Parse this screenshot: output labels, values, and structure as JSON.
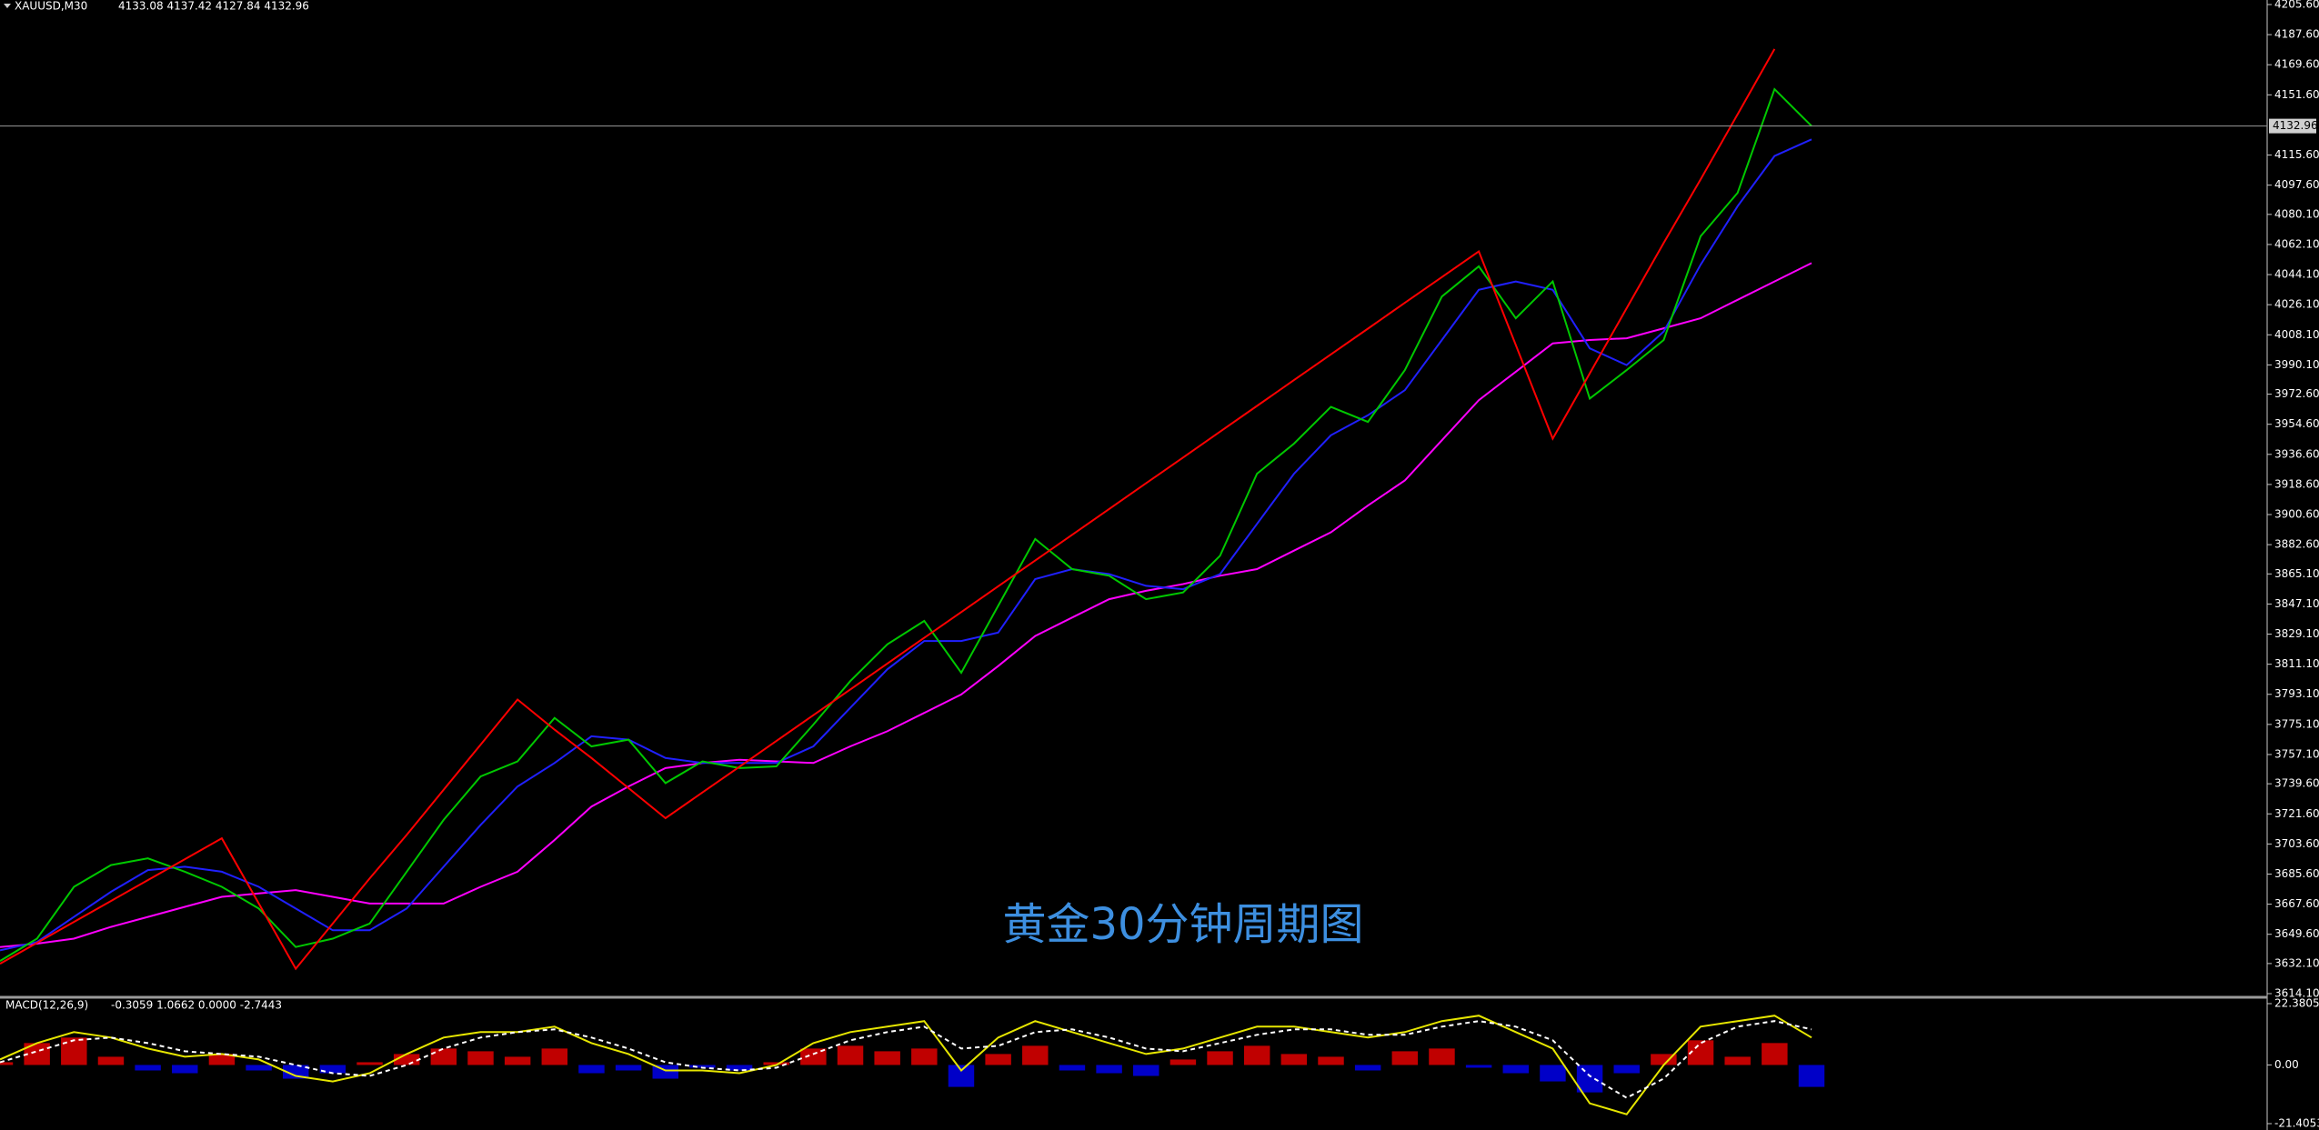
{
  "chart_data": [
    {
      "type": "line",
      "title": "XAUUSD,M30",
      "subtitle": "4133.08 4137.42 4127.84 4132.96",
      "annotation": "黄金30分钟周期图",
      "ylim": [
        3614.1,
        4205.6
      ],
      "yticks": [
        {
          "value": 4205.6,
          "label": "4205.60"
        },
        {
          "value": 4187.6,
          "label": "4187.60"
        },
        {
          "value": 4169.6,
          "label": "4169.60"
        },
        {
          "value": 4151.6,
          "label": "4151.60"
        },
        {
          "value": 4115.6,
          "label": "4115.60"
        },
        {
          "value": 4097.6,
          "label": "4097.60"
        },
        {
          "value": 4080.1,
          "label": "4080.10"
        },
        {
          "value": 4062.1,
          "label": "4062.10"
        },
        {
          "value": 4044.1,
          "label": "4044.10"
        },
        {
          "value": 4026.1,
          "label": "4026.10"
        },
        {
          "value": 4008.1,
          "label": "4008.10"
        },
        {
          "value": 3990.1,
          "label": "3990.10"
        },
        {
          "value": 3972.6,
          "label": "3972.60"
        },
        {
          "value": 3954.6,
          "label": "3954.60"
        },
        {
          "value": 3936.6,
          "label": "3936.60"
        },
        {
          "value": 3918.6,
          "label": "3918.60"
        },
        {
          "value": 3900.6,
          "label": "3900.60"
        },
        {
          "value": 3882.6,
          "label": "3882.60"
        },
        {
          "value": 3865.1,
          "label": "3865.10"
        },
        {
          "value": 3847.1,
          "label": "3847.10"
        },
        {
          "value": 3829.1,
          "label": "3829.10"
        },
        {
          "value": 3811.1,
          "label": "3811.10"
        },
        {
          "value": 3793.1,
          "label": "3793.10"
        },
        {
          "value": 3775.1,
          "label": "3775.10"
        },
        {
          "value": 3757.1,
          "label": "3757.10"
        },
        {
          "value": 3739.6,
          "label": "3739.60"
        },
        {
          "value": 3721.6,
          "label": "3721.60"
        },
        {
          "value": 3703.6,
          "label": "3703.60"
        },
        {
          "value": 3685.6,
          "label": "3685.60"
        },
        {
          "value": 3667.6,
          "label": "3667.60"
        },
        {
          "value": 3649.6,
          "label": "3649.60"
        },
        {
          "value": 3632.1,
          "label": "3632.10"
        },
        {
          "value": 3614.1,
          "label": "3614.10"
        }
      ],
      "current_price": 4132.96,
      "series": [
        {
          "color": "#ff00ff",
          "values": [
            3642,
            3644,
            3647,
            3654,
            3660,
            3666,
            3672,
            3674,
            3676,
            3672,
            3668,
            3668,
            3668,
            3678,
            3687,
            3706,
            3726,
            3738,
            3749,
            3752,
            3754,
            3753,
            3752,
            3762,
            3771,
            3782,
            3793,
            3810,
            3828,
            3839,
            3850,
            3855,
            3859,
            3864,
            3868,
            3879,
            3890,
            3906,
            3921,
            3945,
            3969,
            3986,
            4003,
            4005,
            4006,
            4012,
            4018,
            4029,
            4040,
            4051
          ]
        },
        {
          "color": "#2020ff",
          "values": [
            3640,
            3645,
            3660,
            3675,
            3688,
            3690,
            3687,
            3678,
            3665,
            3652,
            3652,
            3665,
            3690,
            3715,
            3738,
            3752,
            3768,
            3766,
            3755,
            3752,
            3752,
            3752,
            3762,
            3785,
            3808,
            3825,
            3825,
            3830,
            3862,
            3868,
            3865,
            3858,
            3856,
            3865,
            3895,
            3925,
            3948,
            3960,
            3975,
            4005,
            4035,
            4040,
            4035,
            4000,
            3990,
            4010,
            4050,
            4085,
            4115,
            4125
          ]
        },
        {
          "color": "#00c800",
          "values": [
            3633.6,
            3647,
            3678,
            3691,
            3695,
            3687,
            3678,
            3665,
            3642,
            3647,
            3656,
            3687,
            3718,
            3744,
            3753,
            3779,
            3762,
            3766,
            3740,
            3753,
            3749,
            3750,
            3775,
            3801,
            3823,
            3837,
            3806,
            3846,
            3886,
            3868,
            3864,
            3850,
            3854,
            3876,
            3925,
            3943,
            3965,
            3956,
            3987,
            4031,
            4049,
            4018,
            4040,
            3970,
            3987,
            4005,
            4067,
            4093,
            4155,
            4132.96
          ]
        },
        {
          "color": "#ff0000",
          "values": [
            3632,
            3644.5,
            3657,
            3669.5,
            3682,
            3694.5,
            3707,
            3668,
            3629,
            3656,
            3683,
            3709,
            3736,
            3763,
            3790,
            3772,
            3755,
            3737,
            3719,
            3734.4,
            3749.8,
            3765.2,
            3780.6,
            3796.0,
            3811.5,
            3826.9,
            3842.3,
            3857.7,
            3873.1,
            3888.5,
            3903.9,
            3919.3,
            3934.7,
            3950.2,
            3965.6,
            3981.0,
            3996.4,
            4011.8,
            4027.2,
            4042.6,
            4058,
            4002,
            3946,
            3985,
            4024,
            4063,
            4101,
            4140,
            4179,
            null
          ]
        }
      ]
    },
    {
      "type": "macd",
      "title": "MACD(12,26,9)",
      "subtitle": "-0.3059 1.0662 0.0000 -2.7443",
      "ylim": [
        -21.4053,
        22.3805
      ],
      "yticks": [
        22.3805,
        {
          "value": 0,
          "label": "0.00"
        },
        -21.4053
      ],
      "up_color": "#c00000",
      "down_color": "#0000c8",
      "values": [
        1,
        8,
        10,
        3,
        -2,
        -3,
        4,
        -2,
        -5,
        -3,
        1,
        4,
        6,
        5,
        3,
        6,
        -3,
        -2,
        -5,
        -1,
        -2,
        1,
        6,
        7,
        5,
        6,
        -8,
        4,
        7,
        -2,
        -3,
        -4,
        2,
        5,
        7,
        4,
        3,
        -2,
        5,
        6,
        -1,
        -3,
        -6,
        -10,
        -3,
        4,
        9,
        3,
        8,
        -8
      ],
      "series": [
        {
          "color": "#e6e600",
          "values": [
            2,
            8,
            12,
            10,
            6,
            3,
            4,
            2,
            -4,
            -6,
            -3,
            4,
            10,
            12,
            12,
            14,
            8,
            4,
            -2,
            -2,
            -3,
            0,
            8,
            12,
            14,
            16,
            -2,
            10,
            16,
            12,
            8,
            4,
            6,
            10,
            14,
            14,
            12,
            10,
            12,
            16,
            18,
            12,
            6,
            -14,
            -18,
            0,
            14,
            16,
            18,
            10
          ]
        },
        {
          "color": "#ffffff",
          "dashed": true,
          "values": [
            1,
            5,
            9,
            10,
            8,
            5,
            4,
            3,
            0,
            -3,
            -4,
            0,
            6,
            10,
            12,
            13,
            10,
            6,
            1,
            -1,
            -2,
            -1,
            4,
            9,
            12,
            14,
            6,
            7,
            12,
            13,
            10,
            6,
            5,
            8,
            11,
            13,
            13,
            11,
            11,
            14,
            16,
            14,
            9,
            -4,
            -12,
            -5,
            8,
            14,
            16,
            13
          ]
        }
      ]
    }
  ]
}
